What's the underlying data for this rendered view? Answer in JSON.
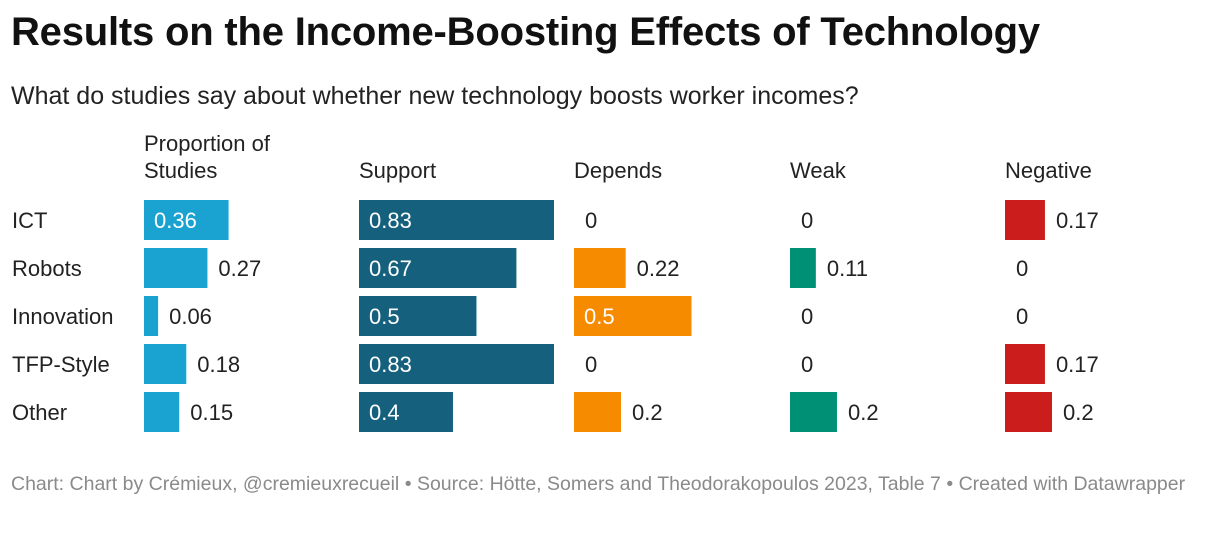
{
  "title": "Results on the Income-Boosting Effects of Technology",
  "subtitle": "What do studies say about whether new technology boosts worker incomes?",
  "footer": {
    "chart_label": "Chart:",
    "credit": "Chart by Crémieux, @cremieuxrecueil",
    "separator1": "•",
    "source_label": "Source:",
    "source": "Hötte, Somers and Theodorakopoulos 2023, Table 7",
    "separator2": "•",
    "created_with": "Created with Datawrapper"
  },
  "chart_data": {
    "type": "table",
    "row_labels": [
      "ICT",
      "Robots",
      "Innovation",
      "TFP-Style",
      "Other"
    ],
    "columns": [
      {
        "name": "Proportion of Studies",
        "header_lines": [
          "Proportion of",
          "Studies"
        ],
        "color": "#1aa3d0",
        "values": [
          0.36,
          0.27,
          0.06,
          0.18,
          0.15
        ]
      },
      {
        "name": "Support",
        "header_lines": [
          "Support"
        ],
        "color": "#14607d",
        "values": [
          0.83,
          0.67,
          0.5,
          0.83,
          0.4
        ]
      },
      {
        "name": "Depends",
        "header_lines": [
          "Depends"
        ],
        "color": "#f68b00",
        "values": [
          0,
          0.22,
          0.5,
          0,
          0.2
        ]
      },
      {
        "name": "Weak",
        "header_lines": [
          "Weak"
        ],
        "color": "#009075",
        "values": [
          0,
          0.11,
          0,
          0,
          0.2
        ]
      },
      {
        "name": "Negative",
        "header_lines": [
          "Negative"
        ],
        "color": "#cc1d1d",
        "values": [
          0.17,
          0,
          0,
          0.17,
          0.2
        ]
      }
    ],
    "value_scale_max": 0.83
  }
}
